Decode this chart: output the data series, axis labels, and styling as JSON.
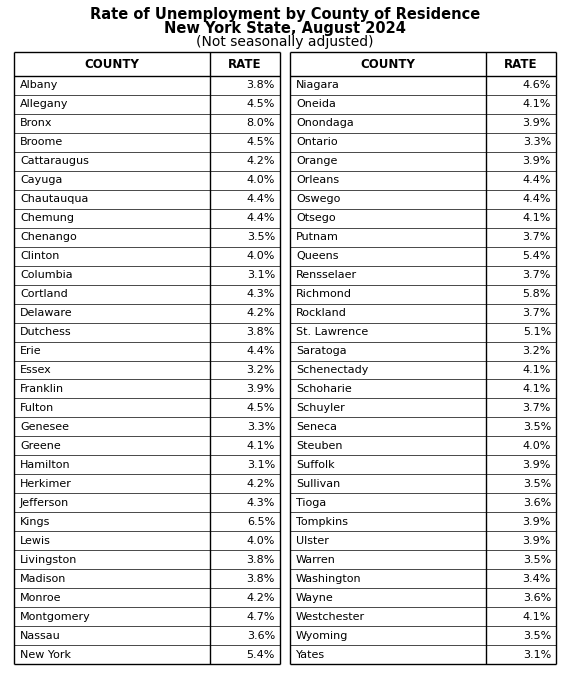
{
  "title_line1": "Rate of Unemployment by County of Residence",
  "title_line2": "New York State, August 2024",
  "title_line3": "(Not seasonally adjusted)",
  "left_counties": [
    "Albany",
    "Allegany",
    "Bronx",
    "Broome",
    "Cattaraugus",
    "Cayuga",
    "Chautauqua",
    "Chemung",
    "Chenango",
    "Clinton",
    "Columbia",
    "Cortland",
    "Delaware",
    "Dutchess",
    "Erie",
    "Essex",
    "Franklin",
    "Fulton",
    "Genesee",
    "Greene",
    "Hamilton",
    "Herkimer",
    "Jefferson",
    "Kings",
    "Lewis",
    "Livingston",
    "Madison",
    "Monroe",
    "Montgomery",
    "Nassau",
    "New York"
  ],
  "left_rates": [
    "3.8%",
    "4.5%",
    "8.0%",
    "4.5%",
    "4.2%",
    "4.0%",
    "4.4%",
    "4.4%",
    "3.5%",
    "4.0%",
    "3.1%",
    "4.3%",
    "4.2%",
    "3.8%",
    "4.4%",
    "3.2%",
    "3.9%",
    "4.5%",
    "3.3%",
    "4.1%",
    "3.1%",
    "4.2%",
    "4.3%",
    "6.5%",
    "4.0%",
    "3.8%",
    "3.8%",
    "4.2%",
    "4.7%",
    "3.6%",
    "5.4%"
  ],
  "right_counties": [
    "Niagara",
    "Oneida",
    "Onondaga",
    "Ontario",
    "Orange",
    "Orleans",
    "Oswego",
    "Otsego",
    "Putnam",
    "Queens",
    "Rensselaer",
    "Richmond",
    "Rockland",
    "St. Lawrence",
    "Saratoga",
    "Schenectady",
    "Schoharie",
    "Schuyler",
    "Seneca",
    "Steuben",
    "Suffolk",
    "Sullivan",
    "Tioga",
    "Tompkins",
    "Ulster",
    "Warren",
    "Washington",
    "Wayne",
    "Westchester",
    "Wyoming",
    "Yates"
  ],
  "right_rates": [
    "4.6%",
    "4.1%",
    "3.9%",
    "3.3%",
    "3.9%",
    "4.4%",
    "4.4%",
    "4.1%",
    "3.7%",
    "5.4%",
    "3.7%",
    "5.8%",
    "3.7%",
    "5.1%",
    "3.2%",
    "4.1%",
    "4.1%",
    "3.7%",
    "3.5%",
    "4.0%",
    "3.9%",
    "3.5%",
    "3.6%",
    "3.9%",
    "3.9%",
    "3.5%",
    "3.4%",
    "3.6%",
    "4.1%",
    "3.5%",
    "3.1%"
  ],
  "header_county": "COUNTY",
  "header_rate": "RATE",
  "bg_color": "#ffffff",
  "text_color": "#000000",
  "line_color": "#000000",
  "title_fontsize": 10.5,
  "subtitle_fontsize": 10.5,
  "header_fontsize": 8.5,
  "data_fontsize": 8.0
}
